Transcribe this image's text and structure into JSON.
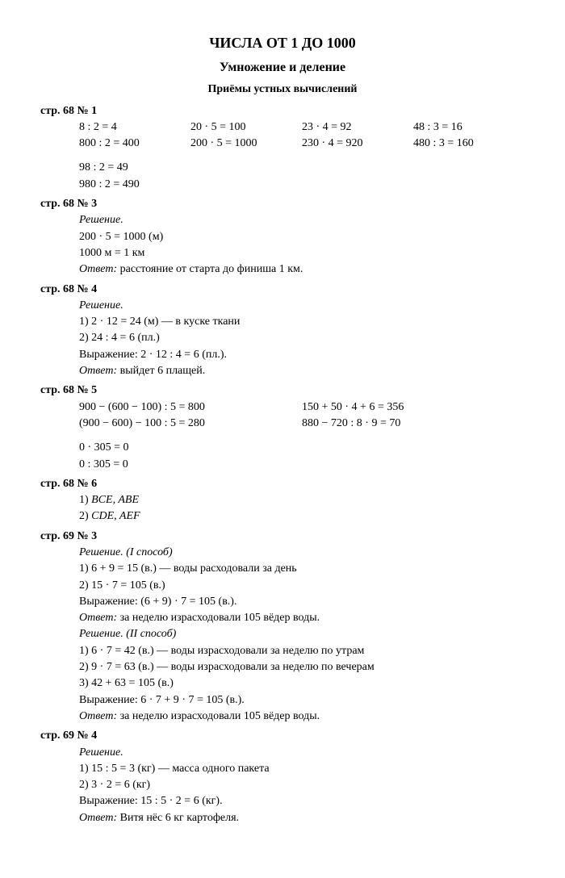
{
  "title": "ЧИСЛА ОТ 1 ДО 1000",
  "subtitle": "Умножение и деление",
  "subsubtitle": "Приёмы устных вычислений",
  "sections": {
    "s68_1": {
      "label": "стр. 68 № 1",
      "row1c1": "8 : 2 = 4",
      "row1c2": "20 · 5 = 100",
      "row1c3": "23 · 4 = 92",
      "row1c4": "48 : 3 = 16",
      "row2c1": "800 : 2 = 400",
      "row2c2": "200 · 5 = 1000",
      "row2c3": "230 · 4 = 920",
      "row2c4": "480 : 3 = 160",
      "row3": "98 : 2 = 49",
      "row4": "980 : 2 = 490"
    },
    "s68_3": {
      "label": "стр. 68 № 3",
      "reshenie": "Решение.",
      "l1": "200 · 5 = 1000 (м)",
      "l2": "1000 м = 1 км",
      "ans_label": "Ответ:",
      "ans": " расстояние от старта до финиша 1 км."
    },
    "s68_4": {
      "label": "стр. 68 № 4",
      "reshenie": "Решение.",
      "l1": "1) 2 · 12 = 24 (м) — в куске ткани",
      "l2": "2) 24 : 4 = 6 (пл.)",
      "l3": "Выражение: 2 · 12 : 4 = 6 (пл.).",
      "ans_label": "Ответ:",
      "ans": " выйдет 6 плащей."
    },
    "s68_5": {
      "label": "стр. 68 № 5",
      "r1c1": "900 − (600 − 100) : 5 = 800",
      "r1c2": "150 + 50 · 4 + 6 = 356",
      "r2c1": "(900 − 600) − 100 : 5 = 280",
      "r2c2": "880 − 720 : 8 · 9 = 70",
      "r3": "0 · 305 = 0",
      "r4": "0 : 305 = 0"
    },
    "s68_6": {
      "label": "стр. 68 № 6",
      "l1a": "1) ",
      "l1b": "BCE, ABE",
      "l2a": "2) ",
      "l2b": "CDE, AEF"
    },
    "s69_3": {
      "label": "стр. 69 № 3",
      "r1": "Решение. (I способ)",
      "l1": "1) 6 + 9 = 15 (в.) — воды расходовали за день",
      "l2": "2) 15 · 7 = 105 (в.)",
      "l3": "Выражение: (6 + 9) · 7 = 105 (в.).",
      "ans1_label": "Ответ:",
      "ans1": " за неделю израсходовали 105 вёдер воды.",
      "r2": "Решение. (II способ)",
      "m1": "1) 6 · 7 = 42 (в.) — воды израсходовали за неделю по утрам",
      "m2": "2) 9 · 7 = 63 (в.) — воды израсходовали за неделю по вечерам",
      "m3": "3) 42 + 63 = 105 (в.)",
      "m4": "Выражение: 6 · 7 + 9 · 7 = 105 (в.).",
      "ans2_label": "Ответ:",
      "ans2": " за неделю израсходовали 105 вёдер воды."
    },
    "s69_4": {
      "label": "стр. 69 № 4",
      "reshenie": "Решение.",
      "l1": "1) 15 : 5 = 3 (кг) — масса одного пакета",
      "l2": "2) 3 · 2 = 6 (кг)",
      "l3": "Выражение: 15 : 5 · 2 = 6 (кг).",
      "ans_label": "Ответ:",
      "ans": " Витя нёс 6 кг картофеля."
    }
  }
}
